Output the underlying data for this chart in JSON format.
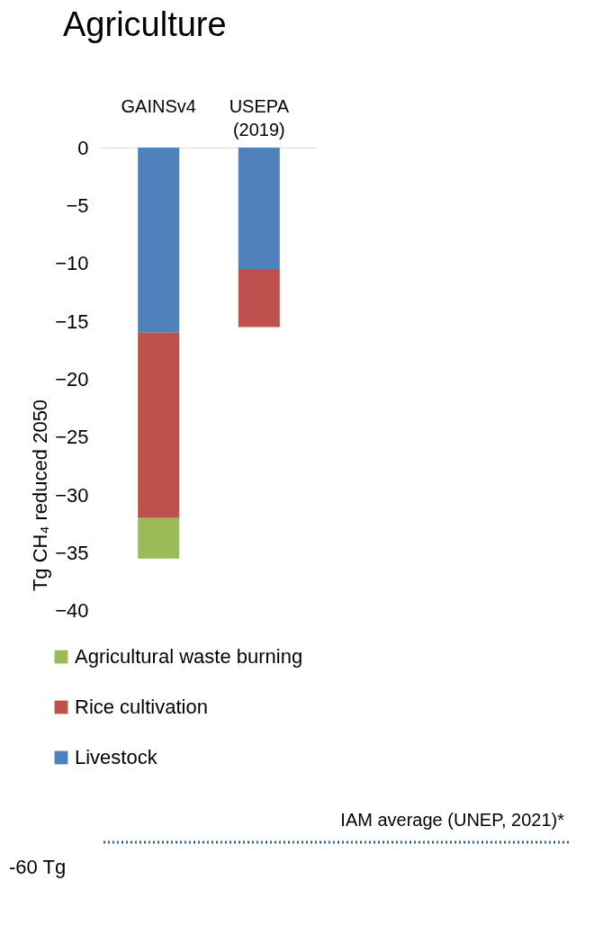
{
  "chart_data": {
    "type": "bar",
    "title": "Agriculture",
    "ylabel": "Tg CH₄ reduced 2050",
    "categories": [
      "GAINSv4",
      "USEPA (2019)"
    ],
    "stacked": true,
    "series": [
      {
        "name": "Livestock",
        "color": "#4f81bd",
        "values": [
          -16,
          -10.5
        ]
      },
      {
        "name": "Rice cultivation",
        "color": "#c0504d",
        "values": [
          -16,
          -5
        ]
      },
      {
        "name": "Agricultural waste burning",
        "color": "#9bbb59",
        "values": [
          -3.5,
          null
        ]
      }
    ],
    "ylim": [
      -60,
      0
    ],
    "yticks": [
      0,
      -5,
      -10,
      -15,
      -20,
      -25,
      -30,
      -35,
      -40
    ],
    "ref_lines": [
      {
        "axis": "y",
        "value": -60,
        "label": "-60 Tg",
        "color": "#2e5fa8",
        "line_style": "dotted"
      }
    ],
    "annotations": [
      {
        "text": "IAM average (UNEP, 2021)*",
        "y": -60
      }
    ],
    "legend": "bottom left",
    "grid": false
  }
}
